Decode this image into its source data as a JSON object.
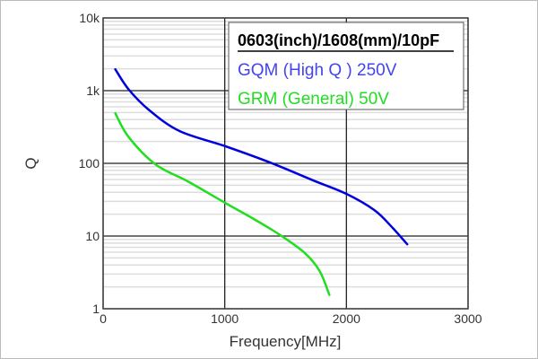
{
  "chart_data": {
    "type": "line",
    "title": "0603(inch)/1608(mm)/10pF",
    "xlabel": "Frequency[MHz]",
    "ylabel": "Q",
    "xlim": [
      0,
      3000
    ],
    "ylim": [
      1,
      10000
    ],
    "yscale": "log",
    "grid": true,
    "legend_placement": "top-right",
    "x_ticks": [
      "0",
      "1000",
      "2000",
      "3000"
    ],
    "y_ticks": [
      "1",
      "10",
      "100",
      "1k",
      "10k"
    ],
    "series": [
      {
        "name": "GQM (High Q ) 250V",
        "color": "#0000dd",
        "legend_color": "#4444ee",
        "x": [
          100,
          210,
          380,
          630,
          1000,
          1370,
          1730,
          2000,
          2230,
          2370,
          2500
        ],
        "y": [
          1970,
          1040,
          537,
          277,
          173,
          103,
          58,
          38,
          22.7,
          13.5,
          7.7
        ]
      },
      {
        "name": "GRM (General) 50V",
        "color": "#22dd22",
        "legend_color": "#22dd22",
        "x": [
          100,
          210,
          430,
          700,
          1000,
          1240,
          1460,
          1660,
          1780,
          1860
        ],
        "y": [
          489,
          230,
          97,
          56,
          28.8,
          17.1,
          10.2,
          5.8,
          3.3,
          1.55
        ]
      }
    ]
  }
}
